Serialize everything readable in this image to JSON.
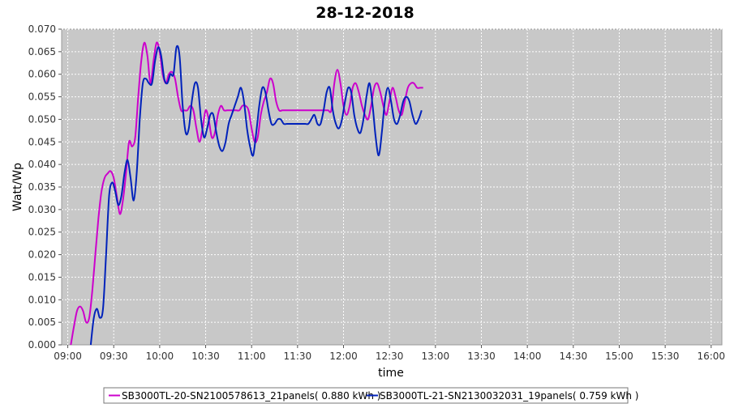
{
  "chart_data": {
    "type": "line",
    "title": "28-12-2018",
    "xlabel": "time",
    "ylabel": "Watt/Wp",
    "x_ticks": [
      "09:00",
      "09:30",
      "10:00",
      "10:30",
      "11:00",
      "11:30",
      "12:00",
      "12:30",
      "13:00",
      "13:30",
      "14:00",
      "14:30",
      "15:00",
      "15:30",
      "16:00"
    ],
    "y_ticks": [
      "0.000",
      "0.005",
      "0.010",
      "0.015",
      "0.020",
      "0.025",
      "0.030",
      "0.035",
      "0.040",
      "0.045",
      "0.050",
      "0.055",
      "0.060",
      "0.065",
      "0.070"
    ],
    "xlim": [
      "08:56",
      "16:07"
    ],
    "ylim": [
      0,
      0.07
    ],
    "grid": true,
    "legend_position": "bottom",
    "colors": {
      "plot_background": "#c8c8c8",
      "grid": "#ffffff"
    },
    "series": [
      {
        "name": "SB3000TL-20-SN2100578613_21panels( 0.880 kWh )",
        "color": "#cc00cc",
        "points": [
          [
            "09:02",
            0.0
          ],
          [
            "09:04",
            0.004
          ],
          [
            "09:06",
            0.0075
          ],
          [
            "09:08",
            0.0085
          ],
          [
            "09:10",
            0.0075
          ],
          [
            "09:12",
            0.005
          ],
          [
            "09:14",
            0.006
          ],
          [
            "09:16",
            0.012
          ],
          [
            "09:18",
            0.02
          ],
          [
            "09:20",
            0.028
          ],
          [
            "09:22",
            0.034
          ],
          [
            "09:24",
            0.037
          ],
          [
            "09:26",
            0.038
          ],
          [
            "09:28",
            0.0385
          ],
          [
            "09:30",
            0.037
          ],
          [
            "09:32",
            0.033
          ],
          [
            "09:34",
            0.029
          ],
          [
            "09:36",
            0.032
          ],
          [
            "09:38",
            0.038
          ],
          [
            "09:40",
            0.045
          ],
          [
            "09:42",
            0.044
          ],
          [
            "09:44",
            0.046
          ],
          [
            "09:46",
            0.055
          ],
          [
            "09:48",
            0.063
          ],
          [
            "09:50",
            0.067
          ],
          [
            "09:52",
            0.064
          ],
          [
            "09:54",
            0.058
          ],
          [
            "09:56",
            0.063
          ],
          [
            "09:58",
            0.067
          ],
          [
            "10:00",
            0.065
          ],
          [
            "10:02",
            0.06
          ],
          [
            "10:04",
            0.058
          ],
          [
            "10:06",
            0.06
          ],
          [
            "10:08",
            0.0605
          ],
          [
            "10:10",
            0.059
          ],
          [
            "10:12",
            0.055
          ],
          [
            "10:14",
            0.052
          ],
          [
            "10:16",
            0.052
          ],
          [
            "10:18",
            0.052
          ],
          [
            "10:20",
            0.053
          ],
          [
            "10:22",
            0.052
          ],
          [
            "10:24",
            0.048
          ],
          [
            "10:26",
            0.045
          ],
          [
            "10:28",
            0.048
          ],
          [
            "10:30",
            0.052
          ],
          [
            "10:32",
            0.05
          ],
          [
            "10:34",
            0.046
          ],
          [
            "10:36",
            0.047
          ],
          [
            "10:38",
            0.051
          ],
          [
            "10:40",
            0.053
          ],
          [
            "10:42",
            0.052
          ],
          [
            "10:44",
            0.052
          ],
          [
            "10:46",
            0.052
          ],
          [
            "10:48",
            0.052
          ],
          [
            "10:50",
            0.052
          ],
          [
            "10:52",
            0.052
          ],
          [
            "10:54",
            0.053
          ],
          [
            "10:56",
            0.053
          ],
          [
            "10:58",
            0.052
          ],
          [
            "11:00",
            0.048
          ],
          [
            "11:02",
            0.045
          ],
          [
            "11:04",
            0.046
          ],
          [
            "11:06",
            0.051
          ],
          [
            "11:08",
            0.054
          ],
          [
            "11:10",
            0.056
          ],
          [
            "11:12",
            0.059
          ],
          [
            "11:14",
            0.058
          ],
          [
            "11:16",
            0.054
          ],
          [
            "11:18",
            0.052
          ],
          [
            "11:20",
            0.052
          ],
          [
            "11:22",
            0.052
          ],
          [
            "11:24",
            0.052
          ],
          [
            "11:26",
            0.052
          ],
          [
            "11:28",
            0.052
          ],
          [
            "11:30",
            0.052
          ],
          [
            "11:32",
            0.052
          ],
          [
            "11:34",
            0.052
          ],
          [
            "11:36",
            0.052
          ],
          [
            "11:38",
            0.052
          ],
          [
            "11:40",
            0.052
          ],
          [
            "11:42",
            0.052
          ],
          [
            "11:44",
            0.052
          ],
          [
            "11:46",
            0.052
          ],
          [
            "11:48",
            0.052
          ],
          [
            "11:50",
            0.052
          ],
          [
            "11:52",
            0.052
          ],
          [
            "11:54",
            0.058
          ],
          [
            "11:56",
            0.061
          ],
          [
            "11:58",
            0.058
          ],
          [
            "12:00",
            0.053
          ],
          [
            "12:02",
            0.051
          ],
          [
            "12:04",
            0.053
          ],
          [
            "12:06",
            0.057
          ],
          [
            "12:08",
            0.058
          ],
          [
            "12:10",
            0.056
          ],
          [
            "12:12",
            0.053
          ],
          [
            "12:14",
            0.051
          ],
          [
            "12:16",
            0.05
          ],
          [
            "12:18",
            0.053
          ],
          [
            "12:20",
            0.057
          ],
          [
            "12:22",
            0.058
          ],
          [
            "12:24",
            0.056
          ],
          [
            "12:26",
            0.053
          ],
          [
            "12:28",
            0.051
          ],
          [
            "12:30",
            0.054
          ],
          [
            "12:32",
            0.057
          ],
          [
            "12:34",
            0.055
          ],
          [
            "12:36",
            0.052
          ],
          [
            "12:38",
            0.051
          ],
          [
            "12:40",
            0.054
          ],
          [
            "12:42",
            0.057
          ],
          [
            "12:44",
            0.058
          ],
          [
            "12:46",
            0.058
          ],
          [
            "12:48",
            0.057
          ],
          [
            "12:50",
            0.057
          ],
          [
            "12:52",
            0.057
          ]
        ]
      },
      {
        "name": "SB3000TL-21-SN2130032031_19panels( 0.759 kWh )",
        "color": "#0022bb",
        "points": [
          [
            "09:15",
            0.0
          ],
          [
            "09:17",
            0.006
          ],
          [
            "09:19",
            0.008
          ],
          [
            "09:21",
            0.006
          ],
          [
            "09:23",
            0.008
          ],
          [
            "09:25",
            0.02
          ],
          [
            "09:27",
            0.033
          ],
          [
            "09:29",
            0.036
          ],
          [
            "09:31",
            0.034
          ],
          [
            "09:33",
            0.031
          ],
          [
            "09:35",
            0.033
          ],
          [
            "09:37",
            0.038
          ],
          [
            "09:39",
            0.041
          ],
          [
            "09:41",
            0.037
          ],
          [
            "09:43",
            0.032
          ],
          [
            "09:45",
            0.038
          ],
          [
            "09:47",
            0.05
          ],
          [
            "09:49",
            0.058
          ],
          [
            "09:51",
            0.059
          ],
          [
            "09:53",
            0.058
          ],
          [
            "09:55",
            0.058
          ],
          [
            "09:57",
            0.063
          ],
          [
            "09:59",
            0.066
          ],
          [
            "10:01",
            0.064
          ],
          [
            "10:03",
            0.059
          ],
          [
            "10:05",
            0.058
          ],
          [
            "10:07",
            0.06
          ],
          [
            "10:09",
            0.06
          ],
          [
            "10:11",
            0.066
          ],
          [
            "10:13",
            0.064
          ],
          [
            "10:15",
            0.053
          ],
          [
            "10:17",
            0.047
          ],
          [
            "10:19",
            0.048
          ],
          [
            "10:21",
            0.054
          ],
          [
            "10:23",
            0.058
          ],
          [
            "10:25",
            0.057
          ],
          [
            "10:27",
            0.05
          ],
          [
            "10:29",
            0.046
          ],
          [
            "10:31",
            0.048
          ],
          [
            "10:33",
            0.051
          ],
          [
            "10:35",
            0.051
          ],
          [
            "10:37",
            0.047
          ],
          [
            "10:39",
            0.044
          ],
          [
            "10:41",
            0.043
          ],
          [
            "10:43",
            0.045
          ],
          [
            "10:45",
            0.049
          ],
          [
            "10:47",
            0.051
          ],
          [
            "10:49",
            0.053
          ],
          [
            "10:51",
            0.055
          ],
          [
            "10:53",
            0.057
          ],
          [
            "10:55",
            0.054
          ],
          [
            "10:57",
            0.048
          ],
          [
            "10:59",
            0.044
          ],
          [
            "11:01",
            0.042
          ],
          [
            "11:03",
            0.047
          ],
          [
            "11:05",
            0.053
          ],
          [
            "11:07",
            0.057
          ],
          [
            "11:09",
            0.056
          ],
          [
            "11:11",
            0.052
          ],
          [
            "11:13",
            0.049
          ],
          [
            "11:15",
            0.049
          ],
          [
            "11:17",
            0.05
          ],
          [
            "11:19",
            0.05
          ],
          [
            "11:21",
            0.049
          ],
          [
            "11:23",
            0.049
          ],
          [
            "11:25",
            0.049
          ],
          [
            "11:27",
            0.049
          ],
          [
            "11:29",
            0.049
          ],
          [
            "11:31",
            0.049
          ],
          [
            "11:33",
            0.049
          ],
          [
            "11:35",
            0.049
          ],
          [
            "11:37",
            0.049
          ],
          [
            "11:39",
            0.05
          ],
          [
            "11:41",
            0.051
          ],
          [
            "11:43",
            0.049
          ],
          [
            "11:45",
            0.049
          ],
          [
            "11:47",
            0.052
          ],
          [
            "11:49",
            0.056
          ],
          [
            "11:51",
            0.057
          ],
          [
            "11:53",
            0.052
          ],
          [
            "11:55",
            0.049
          ],
          [
            "11:57",
            0.048
          ],
          [
            "11:59",
            0.05
          ],
          [
            "12:01",
            0.054
          ],
          [
            "12:03",
            0.057
          ],
          [
            "12:05",
            0.056
          ],
          [
            "12:07",
            0.051
          ],
          [
            "12:09",
            0.048
          ],
          [
            "12:11",
            0.047
          ],
          [
            "12:13",
            0.05
          ],
          [
            "12:15",
            0.055
          ],
          [
            "12:17",
            0.058
          ],
          [
            "12:19",
            0.053
          ],
          [
            "12:21",
            0.046
          ],
          [
            "12:23",
            0.042
          ],
          [
            "12:25",
            0.047
          ],
          [
            "12:27",
            0.054
          ],
          [
            "12:29",
            0.057
          ],
          [
            "12:31",
            0.054
          ],
          [
            "12:33",
            0.05
          ],
          [
            "12:35",
            0.049
          ],
          [
            "12:37",
            0.051
          ],
          [
            "12:39",
            0.054
          ],
          [
            "12:41",
            0.055
          ],
          [
            "12:43",
            0.054
          ],
          [
            "12:45",
            0.051
          ],
          [
            "12:47",
            0.049
          ],
          [
            "12:49",
            0.05
          ],
          [
            "12:51",
            0.052
          ]
        ]
      }
    ]
  }
}
